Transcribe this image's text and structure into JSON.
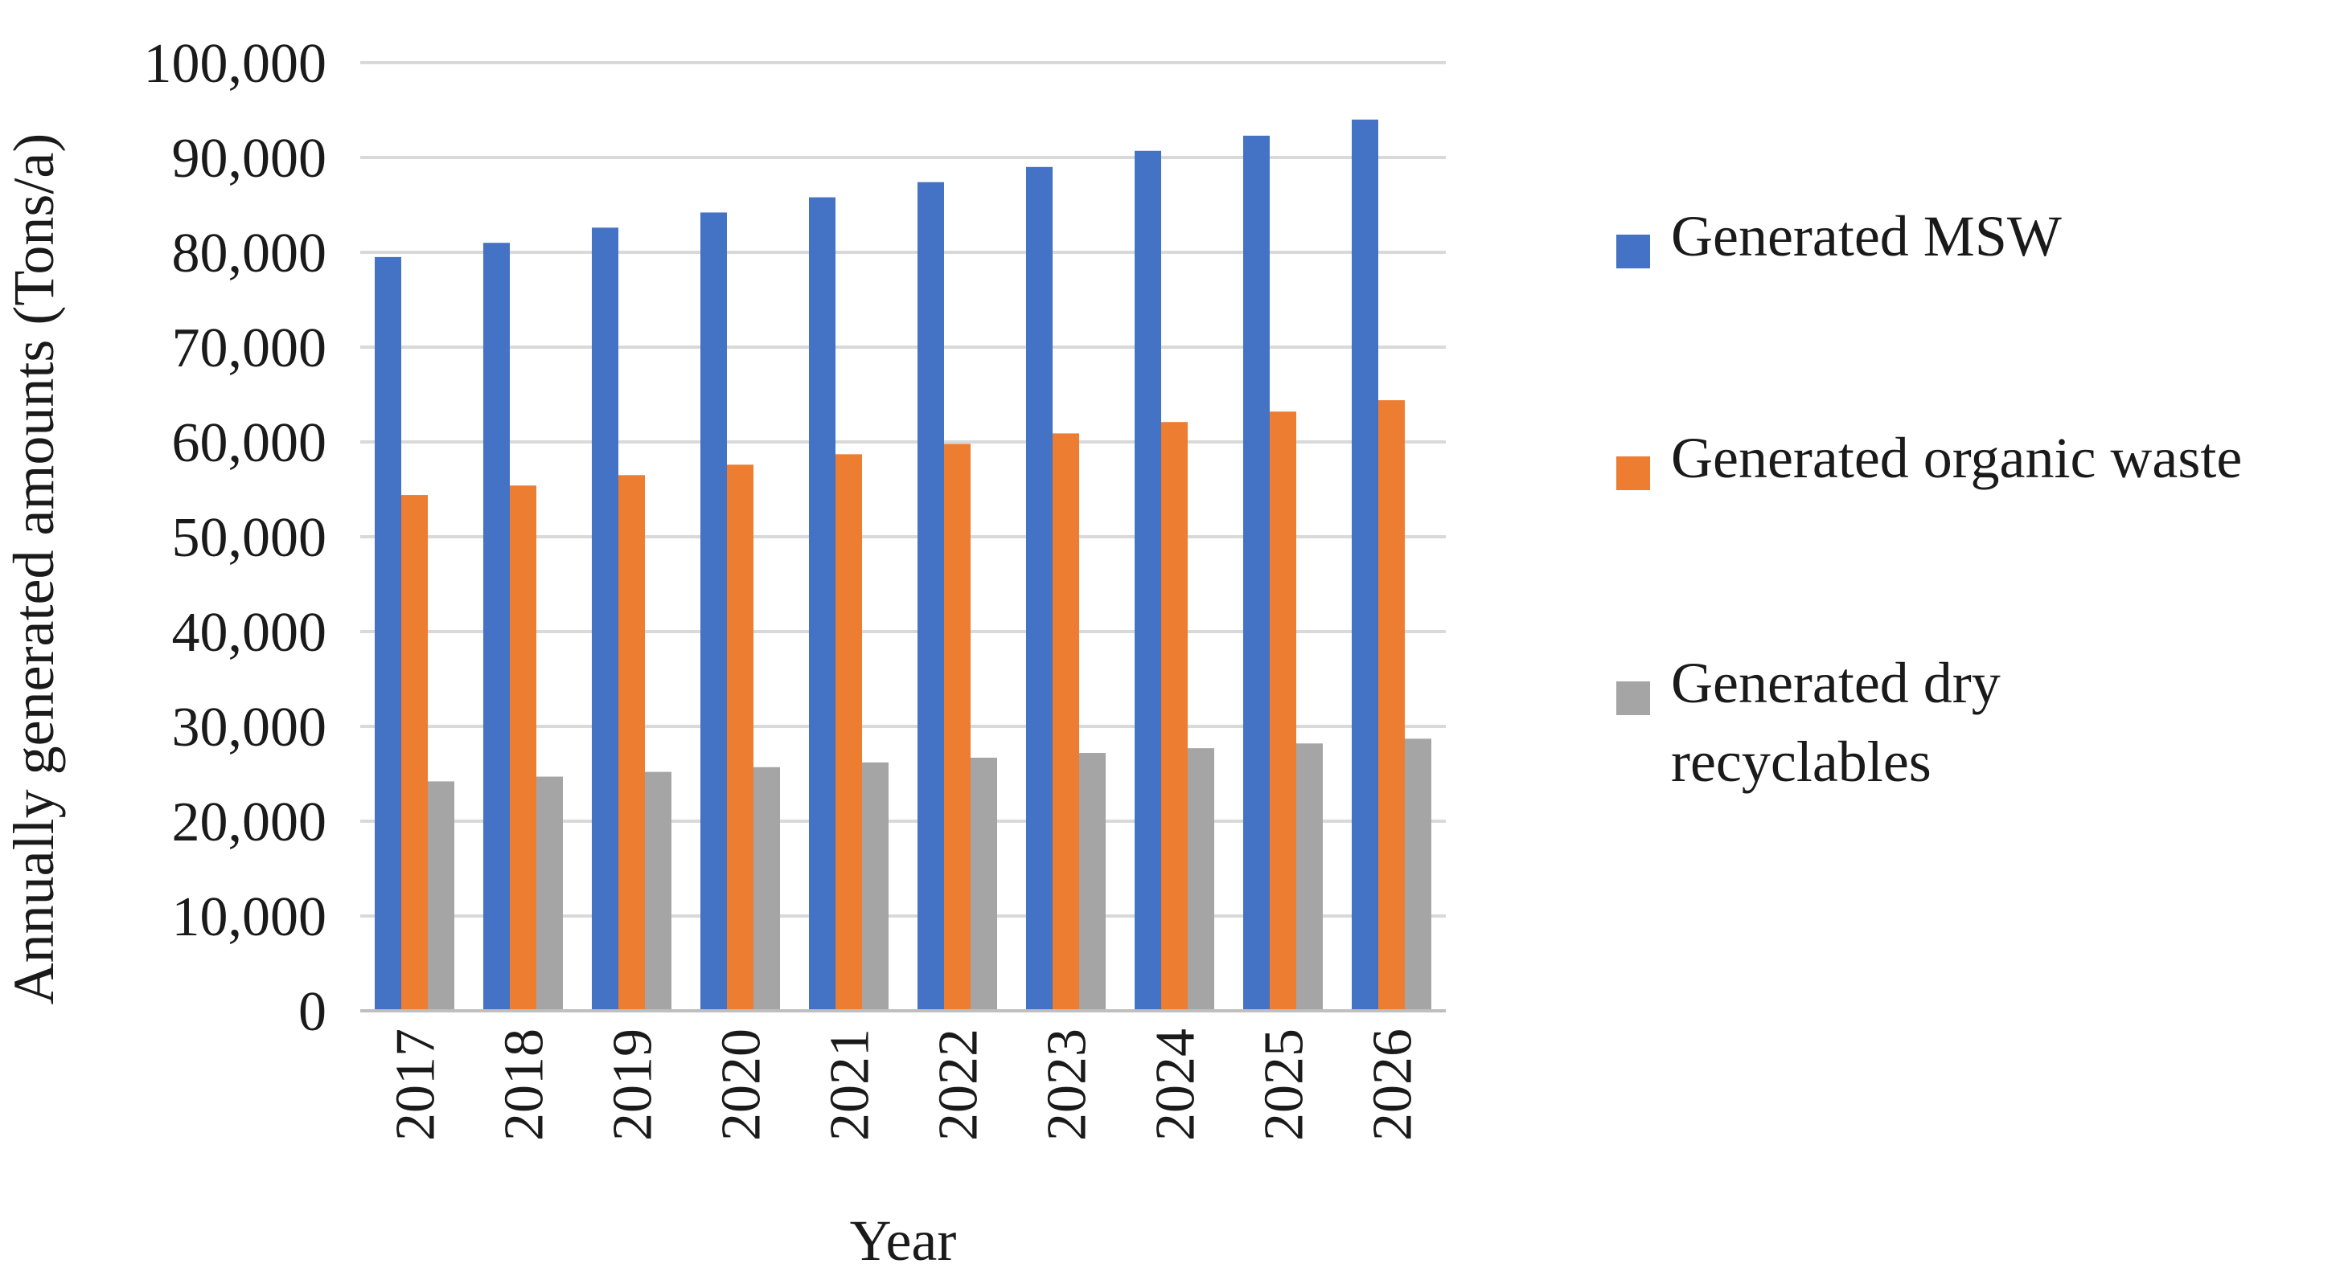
{
  "chart_data": {
    "type": "bar",
    "title": "",
    "xlabel": "Year",
    "ylabel": "Annually generated amounts (Tons/a)",
    "categories": [
      "2017",
      "2018",
      "2019",
      "2020",
      "2021",
      "2022",
      "2023",
      "2024",
      "2025",
      "2026"
    ],
    "series": [
      {
        "name": "Generated MSW",
        "color": "#4472C4",
        "values": [
          79500,
          81000,
          82600,
          84200,
          85800,
          87400,
          89000,
          90700,
          92300,
          94000
        ]
      },
      {
        "name": "Generated organic waste",
        "color": "#ED7D31",
        "values": [
          54400,
          55400,
          56500,
          57600,
          58700,
          59800,
          60900,
          62100,
          63200,
          64400
        ]
      },
      {
        "name": "Generated dry recyclables",
        "legend_lines": [
          "Generated dry",
          "recyclables"
        ],
        "color": "#A5A5A5",
        "values": [
          24200,
          24700,
          25200,
          25700,
          26200,
          26700,
          27200,
          27700,
          28200,
          28700
        ]
      }
    ],
    "ylim": [
      0,
      100000
    ],
    "yticks": [
      "0",
      "10,000",
      "20,000",
      "30,000",
      "40,000",
      "50,000",
      "60,000",
      "70,000",
      "80,000",
      "90,000",
      "100,000"
    ],
    "grid": true,
    "legend_position": "right"
  }
}
